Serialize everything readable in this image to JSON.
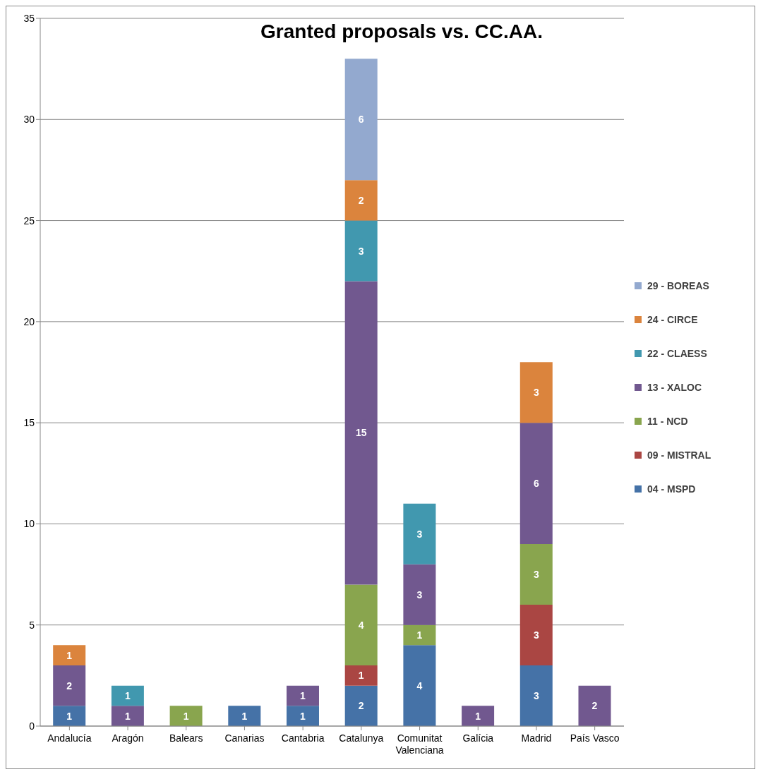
{
  "chart_data": {
    "type": "bar",
    "title": "Granted proposals vs. CC.AA.",
    "categories": [
      "Andalucía",
      "Aragón",
      "Balears",
      "Canarias",
      "Cantabria",
      "Catalunya",
      "Comunitat Valenciana",
      "Galícia",
      "Madrid",
      "País Vasco"
    ],
    "series": [
      {
        "name": "04 - MSPD",
        "color": "#4572a7",
        "values": [
          1,
          null,
          null,
          1,
          1,
          2,
          4,
          null,
          3,
          null
        ]
      },
      {
        "name": "09 - MISTRAL",
        "color": "#aa4643",
        "values": [
          null,
          null,
          null,
          null,
          null,
          1,
          null,
          null,
          3,
          null
        ]
      },
      {
        "name": "11 - NCD",
        "color": "#89a54e",
        "values": [
          null,
          null,
          1,
          null,
          null,
          4,
          1,
          null,
          3,
          null
        ]
      },
      {
        "name": "13 - XALOC",
        "color": "#71588f",
        "values": [
          2,
          1,
          null,
          null,
          1,
          15,
          3,
          1,
          6,
          2
        ]
      },
      {
        "name": "22 - CLAESS",
        "color": "#4198af",
        "values": [
          null,
          1,
          null,
          null,
          null,
          3,
          3,
          null,
          null,
          null
        ]
      },
      {
        "name": "24 - CIRCE",
        "color": "#db843d",
        "values": [
          1,
          null,
          null,
          null,
          null,
          2,
          null,
          null,
          3,
          null
        ]
      },
      {
        "name": "29 - BOREAS",
        "color": "#93a9cf",
        "values": [
          null,
          null,
          null,
          null,
          null,
          6,
          null,
          null,
          null,
          null
        ]
      }
    ],
    "stacked": true,
    "ylim": [
      0,
      35
    ],
    "yticks": [
      0,
      5,
      10,
      15,
      20,
      25,
      30,
      35
    ],
    "grid": "y",
    "legend": "right",
    "data_labels": true
  }
}
